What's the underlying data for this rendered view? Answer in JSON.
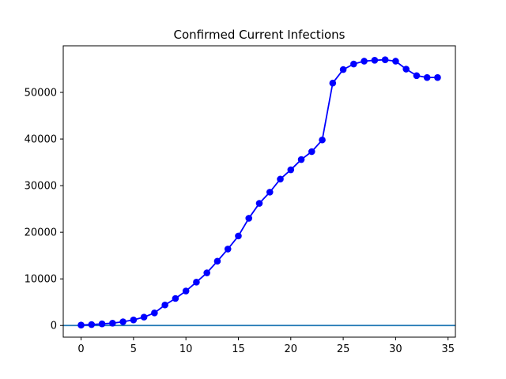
{
  "chart_data": {
    "type": "line",
    "title": "Confirmed Current Infections",
    "xlabel": "",
    "ylabel": "",
    "xlim": [
      -1.7,
      35.7
    ],
    "ylim": [
      -2500,
      60000
    ],
    "xticks": [
      0,
      5,
      10,
      15,
      20,
      25,
      30,
      35
    ],
    "xtick_labels": [
      "0",
      "5",
      "10",
      "15",
      "20",
      "25",
      "30",
      "35"
    ],
    "yticks": [
      0,
      10000,
      20000,
      30000,
      40000,
      50000
    ],
    "ytick_labels": [
      "0",
      "10000",
      "20000",
      "30000",
      "40000",
      "50000"
    ],
    "grid": false,
    "series": [
      {
        "color": "#0000ff",
        "marker": "circle",
        "x": [
          0,
          1,
          2,
          3,
          4,
          5,
          6,
          7,
          8,
          9,
          10,
          11,
          12,
          13,
          14,
          15,
          16,
          17,
          18,
          19,
          20,
          21,
          22,
          23,
          24,
          25,
          26,
          27,
          28,
          29,
          30,
          31,
          32,
          33,
          34
        ],
        "values": [
          100,
          200,
          350,
          500,
          800,
          1200,
          1800,
          2700,
          4400,
          5800,
          7400,
          9300,
          11300,
          13800,
          16400,
          19200,
          23000,
          26200,
          28600,
          31400,
          33400,
          35600,
          37300,
          39800,
          52000,
          54900,
          56100,
          56700,
          56900,
          57000,
          56700,
          55000,
          53600,
          53200,
          53200
        ]
      }
    ],
    "hlines": [
      {
        "y": 0,
        "color": "#1f77b4"
      }
    ]
  }
}
